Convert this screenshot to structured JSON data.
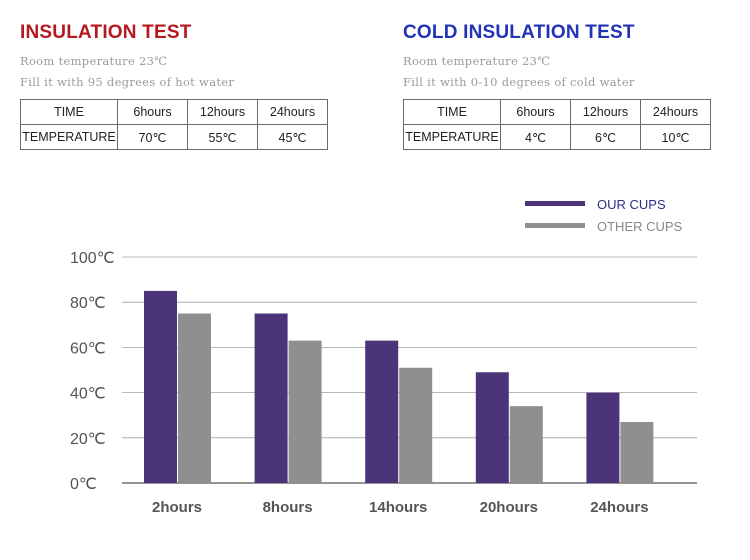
{
  "insulation": {
    "title": "INSULATION TEST",
    "note1": "Room temperature 23℃",
    "note2": "Fill it with 95 degrees of hot water",
    "header": [
      "TIME",
      "6hours",
      "12hours",
      "24hours"
    ],
    "row": [
      "TEMPERATURE",
      "70℃",
      "55℃",
      "45℃"
    ]
  },
  "cold": {
    "title": "COLD INSULATION TEST",
    "note1": "Room temperature 23℃",
    "note2": "Fill it with 0-10 degrees of  cold water",
    "header": [
      "TIME",
      "6hours",
      "12hours",
      "24hours"
    ],
    "row": [
      "TEMPERATURE",
      "4℃",
      "6℃",
      "10℃"
    ]
  },
  "chart_data": {
    "type": "bar",
    "categories": [
      "2hours",
      "8hours",
      "14hours",
      "20hours",
      "24hours"
    ],
    "series": [
      {
        "name": "OUR CUPS",
        "values": [
          85,
          75,
          63,
          49,
          40
        ]
      },
      {
        "name": "OTHER CUPS",
        "values": [
          75,
          63,
          51,
          34,
          27
        ]
      }
    ],
    "ylim": [
      0,
      100
    ],
    "yticks": [
      "0℃",
      "20℃",
      "40℃",
      "60℃",
      "80℃",
      "100℃"
    ],
    "ytick_values": [
      0,
      20,
      40,
      60,
      80,
      100
    ],
    "grid": true,
    "legend": "top-right",
    "colors": {
      "our": "#4b3578",
      "other": "#8f8f8f",
      "grid": "#a0a0a0",
      "baseline": "#555555",
      "legend_text_our": "#2e2e8c",
      "legend_text_other": "#888888"
    }
  }
}
